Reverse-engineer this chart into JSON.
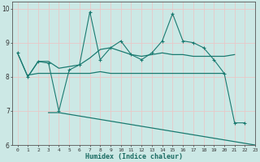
{
  "xlabel": "Humidex (Indice chaleur)",
  "xlim": [
    -0.5,
    23
  ],
  "ylim": [
    6,
    10.2
  ],
  "yticks": [
    6,
    7,
    8,
    9,
    10
  ],
  "xticks": [
    0,
    1,
    2,
    3,
    4,
    5,
    6,
    7,
    8,
    9,
    10,
    11,
    12,
    13,
    14,
    15,
    16,
    17,
    18,
    19,
    20,
    21,
    22,
    23
  ],
  "bg_color": "#cce8e5",
  "grid_color": "#e8c8c8",
  "line_color": "#1a7a70",
  "line1_pts": {
    "x": [
      0,
      1,
      2,
      3,
      4,
      5,
      6,
      7,
      8,
      9,
      10,
      11,
      12,
      13,
      14,
      15,
      16,
      17,
      18,
      19,
      20,
      21,
      22
    ],
    "y": [
      8.7,
      8.0,
      8.45,
      8.4,
      7.0,
      8.2,
      8.35,
      9.9,
      8.5,
      8.85,
      9.05,
      8.65,
      8.5,
      8.7,
      9.05,
      9.85,
      9.05,
      9.0,
      8.85,
      8.5,
      8.1,
      6.65,
      6.65
    ]
  },
  "line2_pts": {
    "x": [
      0,
      1,
      2,
      3,
      4,
      5,
      6,
      7,
      8,
      9,
      10,
      11,
      12,
      13,
      14,
      15,
      16,
      17,
      18,
      19,
      20,
      21
    ],
    "y": [
      8.7,
      8.0,
      8.45,
      8.45,
      8.25,
      8.3,
      8.35,
      8.55,
      8.8,
      8.85,
      8.75,
      8.65,
      8.6,
      8.65,
      8.7,
      8.65,
      8.65,
      8.6,
      8.6,
      8.6,
      8.6,
      8.65
    ]
  },
  "line3_pts": {
    "x": [
      1,
      2,
      3,
      4,
      5,
      6,
      7,
      8,
      9,
      10,
      11,
      12,
      13,
      14,
      15,
      16,
      17,
      18,
      19,
      20
    ],
    "y": [
      8.05,
      8.1,
      8.1,
      8.1,
      8.1,
      8.1,
      8.1,
      8.15,
      8.1,
      8.1,
      8.1,
      8.1,
      8.1,
      8.1,
      8.1,
      8.1,
      8.1,
      8.1,
      8.1,
      8.1
    ]
  },
  "line4_pts": {
    "x": [
      3,
      4,
      5,
      6,
      7,
      8,
      9,
      10,
      11,
      12,
      13,
      14,
      15,
      16,
      17,
      18,
      19,
      20,
      21,
      22,
      23
    ],
    "y": [
      6.95,
      6.95,
      6.9,
      6.85,
      6.8,
      6.75,
      6.7,
      6.65,
      6.6,
      6.55,
      6.5,
      6.45,
      6.4,
      6.35,
      6.3,
      6.25,
      6.2,
      6.15,
      6.1,
      6.05,
      6.0
    ]
  }
}
